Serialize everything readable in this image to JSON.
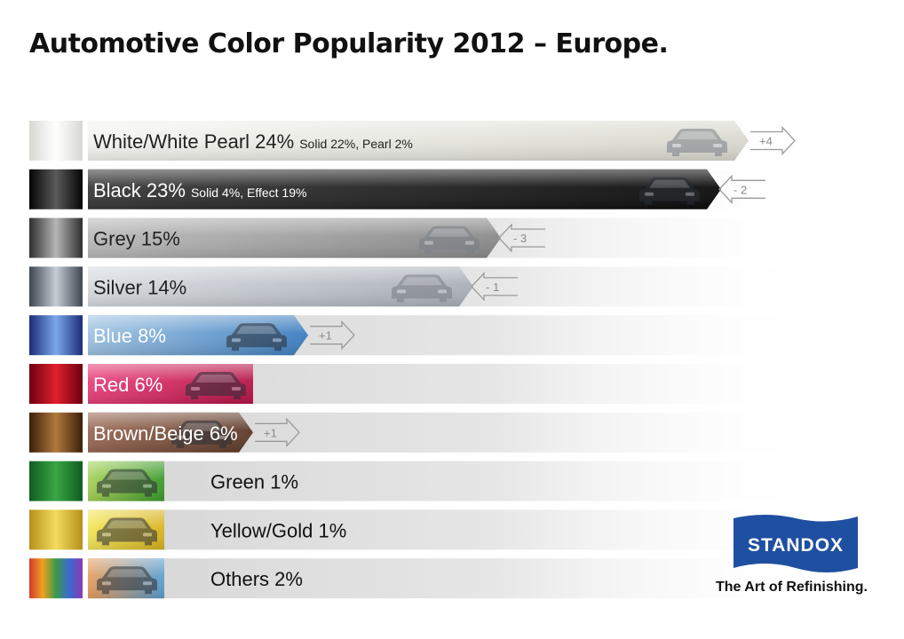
{
  "title": "Automotive Color Popularity 2012 – Europe.",
  "chart_data": {
    "type": "bar",
    "orientation": "horizontal",
    "title": "Automotive Color Popularity 2012 – Europe.",
    "categories": [
      "White/White Pearl",
      "Black",
      "Grey",
      "Silver",
      "Blue",
      "Red",
      "Brown/Beige",
      "Green",
      "Yellow/Gold",
      "Others"
    ],
    "values": [
      24,
      23,
      15,
      14,
      8,
      6,
      6,
      1,
      1,
      2
    ],
    "unit": "%",
    "bars": [
      {
        "label": "White/White Pearl 24%",
        "note": "Solid 22%, Pearl 2%",
        "value": 24,
        "change": "+4",
        "dir": "up",
        "color": "#f4f4ef",
        "color_dark": "#d9d9d0",
        "text_color": "#222222"
      },
      {
        "label": "Black 23%",
        "note": "Solid 4%, Effect 19%",
        "value": 23,
        "change": "- 2",
        "dir": "down",
        "color": "#3a3a3a",
        "color_dark": "#0c0c0c",
        "text_color": "#ffffff"
      },
      {
        "label": "Grey 15%",
        "note": "",
        "value": 15,
        "change": "- 3",
        "dir": "down",
        "color": "#b9b9b9",
        "color_dark": "#8a8a8a",
        "text_color": "#222222"
      },
      {
        "label": "Silver 14%",
        "note": "",
        "value": 14,
        "change": "- 1",
        "dir": "down",
        "color": "#d7dbe0",
        "color_dark": "#aab0b8",
        "text_color": "#222222"
      },
      {
        "label": "Blue 8%",
        "note": "",
        "value": 8,
        "change": "+1",
        "dir": "up",
        "color": "#9ec3e2",
        "color_dark": "#3e7ec0",
        "text_color": "#ffffff"
      },
      {
        "label": "Red 6%",
        "note": "",
        "value": 6,
        "change": "",
        "dir": "none",
        "color": "#e9417a",
        "color_dark": "#b51447",
        "text_color": "#ffffff"
      },
      {
        "label": "Brown/Beige 6%",
        "note": "",
        "value": 6,
        "change": "+1",
        "dir": "up",
        "color": "#9a6a55",
        "color_dark": "#5e3a2a",
        "text_color": "#ffffff"
      },
      {
        "label": "Green 1%",
        "note": "",
        "value": 1,
        "change": "",
        "dir": "none",
        "color": "#a8d35a",
        "color_dark": "#3b9a2b",
        "text_color": "#111111"
      },
      {
        "label": "Yellow/Gold 1%",
        "note": "",
        "value": 1,
        "change": "",
        "dir": "none",
        "color": "#f3e65a",
        "color_dark": "#d8b21f",
        "text_color": "#111111"
      },
      {
        "label": "Others 2%",
        "note": "",
        "value": 2,
        "change": "",
        "dir": "none",
        "color": "#e9a060",
        "color_dark": "#5a9fd0",
        "text_color": "#111111"
      }
    ],
    "swatches": [
      [
        "#d8d8d2",
        "#ffffff",
        "#d8d8d2"
      ],
      [
        "#050505",
        "#5a5a5a",
        "#050505"
      ],
      [
        "#2f2f2f",
        "#b5b5b5",
        "#2f2f2f"
      ],
      [
        "#3e4650",
        "#c4ccd4",
        "#3e4650"
      ],
      [
        "#1b2c7a",
        "#7aa9e8",
        "#1b2c7a"
      ],
      [
        "#6e0010",
        "#e0202c",
        "#6e0010"
      ],
      [
        "#3a1f08",
        "#b07a3c",
        "#3a1f08"
      ],
      [
        "#0e5e1e",
        "#3aa546",
        "#0e5e1e"
      ],
      [
        "#b78f1a",
        "#f2dc5e",
        "#b78f1a"
      ],
      [
        "#d23a2a",
        "#f0a020",
        "#3a9a4a",
        "#3a6ad0",
        "#8a3ab0"
      ]
    ]
  },
  "brand": {
    "logo_text": "STANDOX",
    "tagline": "The Art of Refinishing.",
    "logo_color": "#1f4fa0"
  }
}
